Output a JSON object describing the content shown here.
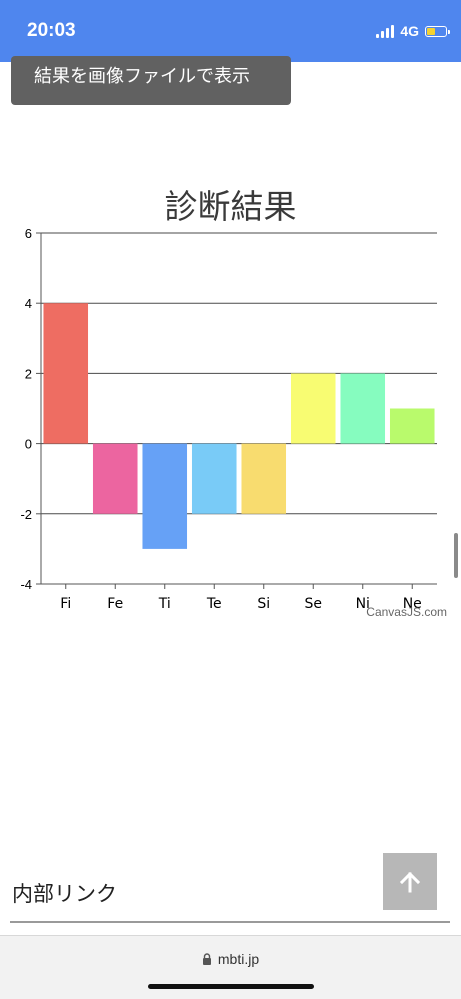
{
  "status_bar": {
    "time": "20:03",
    "network": "4G",
    "battery_level": 0.4,
    "colors": {
      "bar": "#4f86ee",
      "battery": "#f5d230"
    }
  },
  "image_button": {
    "label": "結果を画像ファイルで表示"
  },
  "chart_data": {
    "type": "bar",
    "title": "診断結果",
    "categories": [
      "Fi",
      "Fe",
      "Ti",
      "Te",
      "Si",
      "Se",
      "Ni",
      "Ne"
    ],
    "values": [
      4,
      -2,
      -3,
      -2,
      -2,
      2,
      2,
      1
    ],
    "colors": [
      "#ee6d62",
      "#ec65a0",
      "#66a1f6",
      "#79cbf7",
      "#f8dc6f",
      "#f8fc72",
      "#86fcbf",
      "#b9fa6c"
    ],
    "ylim": [
      -4,
      6
    ],
    "yticks": [
      -4,
      -2,
      0,
      2,
      4,
      6
    ],
    "grid": true,
    "xlabel": "",
    "ylabel": "",
    "credit": "CanvasJS.com"
  },
  "internal_links": {
    "heading": "内部リンク"
  },
  "browser": {
    "url": "mbti.jp"
  }
}
